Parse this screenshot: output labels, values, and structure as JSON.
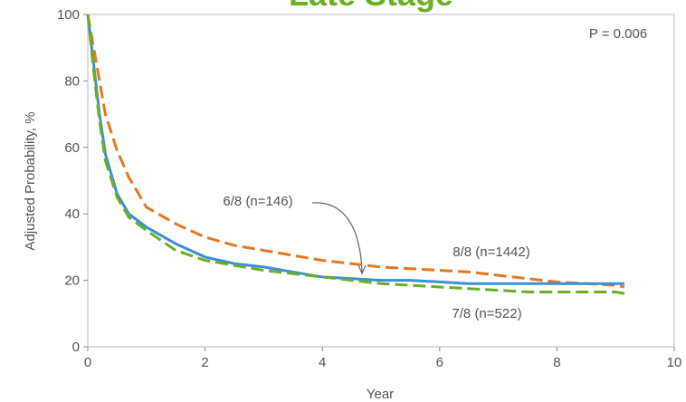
{
  "chart_data": {
    "type": "line",
    "title": "Late Stage",
    "annotation": "P = 0.006",
    "xlabel": "Year",
    "ylabel": "Adjusted Probability, %",
    "x": [
      0,
      0.1,
      0.2,
      0.3,
      0.5,
      0.7,
      1,
      1.5,
      2,
      2.5,
      3,
      3.5,
      4,
      4.5,
      5,
      5.5,
      6,
      6.5,
      7,
      7.5,
      8,
      8.5,
      9,
      9.15
    ],
    "series": [
      {
        "name": "8/8 (n=1442)",
        "color": "#e87722",
        "dashed": true,
        "values": [
          100,
          90,
          80,
          70,
          59,
          51,
          42,
          37,
          33,
          30.5,
          29,
          27.5,
          26,
          25,
          24,
          23.5,
          23,
          22.5,
          21.5,
          20.5,
          19.5,
          19,
          18.5,
          18
        ]
      },
      {
        "name": "6/8 (n=146)",
        "color": "#3a8fd9",
        "dashed": false,
        "values": [
          100,
          85,
          70,
          58,
          46,
          40,
          36,
          31,
          27,
          25,
          24,
          22.5,
          21,
          20.5,
          20,
          20,
          19.5,
          19,
          19,
          19,
          19,
          19,
          19,
          19
        ]
      },
      {
        "name": "7/8 (n=522)",
        "color": "#6ab023",
        "dashed": true,
        "values": [
          100,
          83,
          68,
          56,
          45,
          39,
          35,
          29,
          26,
          24.5,
          23,
          22,
          21,
          20,
          19,
          18.5,
          18,
          17.5,
          17,
          16.5,
          16.5,
          16.5,
          16.5,
          16
        ]
      }
    ],
    "xlim": [
      0,
      10
    ],
    "xticks": [
      0,
      2,
      4,
      6,
      8,
      10
    ],
    "ylim": [
      0,
      100
    ],
    "yticks": [
      0,
      20,
      40,
      60,
      80,
      100
    ]
  }
}
